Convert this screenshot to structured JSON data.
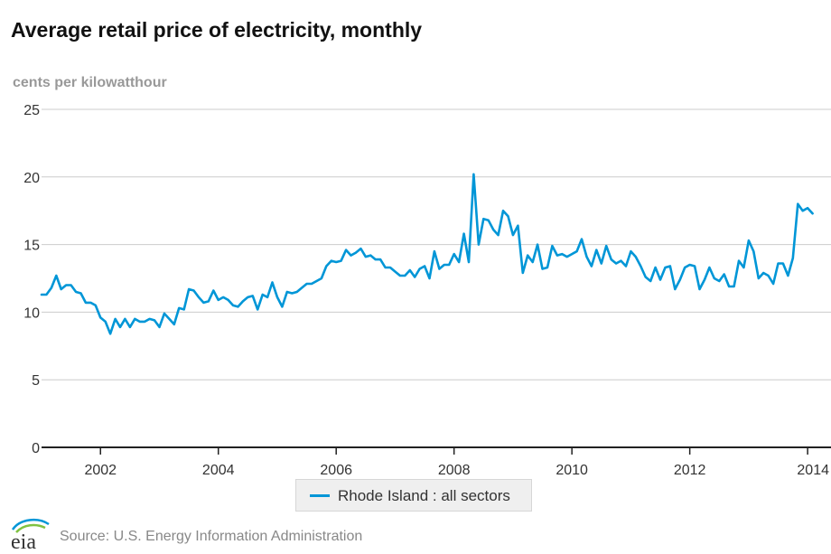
{
  "title": "Average retail price of electricity, monthly",
  "unit_label": "cents per kilowatthour",
  "source": "Source: U.S. Energy Information Administration",
  "logo_text": "eia",
  "colors": {
    "series": "#0096d7",
    "grid": "#cccccc",
    "axis": "#222222"
  },
  "chart_data": {
    "type": "line",
    "title": "Average retail price of electricity, monthly",
    "ylabel": "cents per kilowatthour",
    "xlabel": "",
    "ylim": [
      0,
      25
    ],
    "xlim": [
      2001.0,
      2014.1667
    ],
    "yticks": [
      0,
      5,
      10,
      15,
      20,
      25
    ],
    "xticks": [
      2002,
      2004,
      2006,
      2008,
      2010,
      2012,
      2014
    ],
    "grid": true,
    "legend_position": "bottom",
    "x_start": "2001-01",
    "series": [
      {
        "name": "Rhode Island : all sectors",
        "color": "#0096d7",
        "values": [
          11.3,
          11.3,
          11.8,
          12.7,
          11.7,
          12.0,
          12.0,
          11.5,
          11.4,
          10.7,
          10.7,
          10.5,
          9.6,
          9.3,
          8.4,
          9.5,
          8.9,
          9.5,
          8.9,
          9.5,
          9.3,
          9.3,
          9.5,
          9.4,
          8.9,
          9.9,
          9.5,
          9.1,
          10.3,
          10.2,
          11.7,
          11.6,
          11.1,
          10.7,
          10.8,
          11.6,
          10.9,
          11.1,
          10.9,
          10.5,
          10.4,
          10.8,
          11.1,
          11.2,
          10.2,
          11.3,
          11.1,
          12.2,
          11.1,
          10.4,
          11.5,
          11.4,
          11.5,
          11.8,
          12.1,
          12.1,
          12.3,
          12.5,
          13.4,
          13.8,
          13.7,
          13.8,
          14.6,
          14.2,
          14.4,
          14.7,
          14.1,
          14.2,
          13.9,
          13.9,
          13.3,
          13.3,
          13.0,
          12.7,
          12.7,
          13.1,
          12.6,
          13.2,
          13.4,
          12.5,
          14.5,
          13.2,
          13.5,
          13.5,
          14.3,
          13.7,
          15.8,
          13.7,
          20.2,
          15.0,
          16.9,
          16.8,
          16.1,
          15.7,
          17.5,
          17.1,
          15.7,
          16.4,
          12.9,
          14.2,
          13.7,
          15.0,
          13.2,
          13.3,
          14.9,
          14.2,
          14.3,
          14.1,
          14.3,
          14.5,
          15.4,
          14.1,
          13.4,
          14.6,
          13.6,
          14.9,
          13.9,
          13.6,
          13.8,
          13.4,
          14.5,
          14.1,
          13.4,
          12.6,
          12.3,
          13.3,
          12.4,
          13.3,
          13.4,
          11.7,
          12.4,
          13.3,
          13.5,
          13.4,
          11.7,
          12.4,
          13.3,
          12.5,
          12.3,
          12.8,
          11.9,
          11.9,
          13.8,
          13.3,
          15.3,
          14.5,
          12.5,
          12.9,
          12.7,
          12.1,
          13.6,
          13.6,
          12.7,
          14.0,
          18.0,
          17.5,
          17.7,
          17.3
        ]
      }
    ]
  }
}
